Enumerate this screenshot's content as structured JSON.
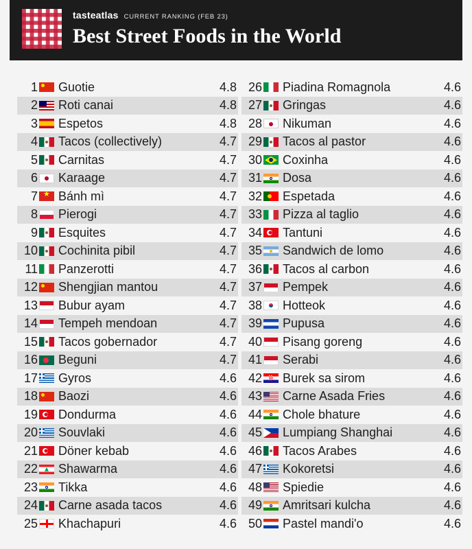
{
  "header": {
    "brand": "tasteatlas",
    "ranking_label": "CURRENT RANKING (FEB 23)",
    "title": "Best Street Foods in the World"
  },
  "colors": {
    "header_bg": "#1c1c1c",
    "row_shade": "#dcdcdc",
    "logo_red": "#c41e3a"
  },
  "left_column": [
    {
      "rank": "1",
      "flag": "china-flag-icon",
      "flag_class": "f-cn",
      "name": "Guotie",
      "rating": "4.8"
    },
    {
      "rank": "2",
      "flag": "malaysia-flag-icon",
      "flag_class": "f-my",
      "name": "Roti canai",
      "rating": "4.8"
    },
    {
      "rank": "3",
      "flag": "spain-flag-icon",
      "flag_class": "f-es",
      "name": "Espetos",
      "rating": "4.8"
    },
    {
      "rank": "4",
      "flag": "mexico-flag-icon",
      "flag_class": "f-mx",
      "name": "Tacos (collectively)",
      "rating": "4.7"
    },
    {
      "rank": "5",
      "flag": "mexico-flag-icon",
      "flag_class": "f-mx",
      "name": "Carnitas",
      "rating": "4.7"
    },
    {
      "rank": "6",
      "flag": "japan-flag-icon",
      "flag_class": "f-jp",
      "name": "Karaage",
      "rating": "4.7"
    },
    {
      "rank": "7",
      "flag": "vietnam-flag-icon",
      "flag_class": "f-vn",
      "name": "Bánh mì",
      "rating": "4.7"
    },
    {
      "rank": "8",
      "flag": "poland-flag-icon",
      "flag_class": "f-pl",
      "name": "Pierogi",
      "rating": "4.7"
    },
    {
      "rank": "9",
      "flag": "mexico-flag-icon",
      "flag_class": "f-mx",
      "name": "Esquites",
      "rating": "4.7"
    },
    {
      "rank": "10",
      "flag": "mexico-flag-icon",
      "flag_class": "f-mx",
      "name": "Cochinita pibil",
      "rating": "4.7"
    },
    {
      "rank": "11",
      "flag": "italy-flag-icon",
      "flag_class": "f-it",
      "name": "Panzerotti",
      "rating": "4.7"
    },
    {
      "rank": "12",
      "flag": "china-flag-icon",
      "flag_class": "f-cn",
      "name": "Shengjian mantou",
      "rating": "4.7"
    },
    {
      "rank": "13",
      "flag": "indonesia-flag-icon",
      "flag_class": "f-id",
      "name": "Bubur ayam",
      "rating": "4.7"
    },
    {
      "rank": "14",
      "flag": "indonesia-flag-icon",
      "flag_class": "f-id",
      "name": "Tempeh mendoan",
      "rating": "4.7"
    },
    {
      "rank": "15",
      "flag": "mexico-flag-icon",
      "flag_class": "f-mx",
      "name": "Tacos gobernador",
      "rating": "4.7"
    },
    {
      "rank": "16",
      "flag": "bangladesh-flag-icon",
      "flag_class": "f-bd",
      "name": "Beguni",
      "rating": "4.7"
    },
    {
      "rank": "17",
      "flag": "greece-flag-icon",
      "flag_class": "f-gr",
      "name": "Gyros",
      "rating": "4.6"
    },
    {
      "rank": "18",
      "flag": "china-flag-icon",
      "flag_class": "f-cn",
      "name": "Baozi",
      "rating": "4.6"
    },
    {
      "rank": "19",
      "flag": "turkey-flag-icon",
      "flag_class": "f-tr",
      "name": "Dondurma",
      "rating": "4.6"
    },
    {
      "rank": "20",
      "flag": "greece-flag-icon",
      "flag_class": "f-gr",
      "name": "Souvlaki",
      "rating": "4.6"
    },
    {
      "rank": "21",
      "flag": "turkey-flag-icon",
      "flag_class": "f-tr",
      "name": "Döner kebab",
      "rating": "4.6"
    },
    {
      "rank": "22",
      "flag": "lebanon-flag-icon",
      "flag_class": "f-lb",
      "name": "Shawarma",
      "rating": "4.6"
    },
    {
      "rank": "23",
      "flag": "india-flag-icon",
      "flag_class": "f-in",
      "name": "Tikka",
      "rating": "4.6"
    },
    {
      "rank": "24",
      "flag": "mexico-flag-icon",
      "flag_class": "f-mx",
      "name": "Carne asada tacos",
      "rating": "4.6"
    },
    {
      "rank": "25",
      "flag": "georgia-flag-icon",
      "flag_class": "f-ge",
      "name": "Khachapuri",
      "rating": "4.6"
    }
  ],
  "right_column": [
    {
      "rank": "26",
      "flag": "italy-flag-icon",
      "flag_class": "f-it",
      "name": "Piadina Romagnola",
      "rating": "4.6"
    },
    {
      "rank": "27",
      "flag": "mexico-flag-icon",
      "flag_class": "f-mx",
      "name": "Gringas",
      "rating": "4.6"
    },
    {
      "rank": "28",
      "flag": "japan-flag-icon",
      "flag_class": "f-jp",
      "name": "Nikuman",
      "rating": "4.6"
    },
    {
      "rank": "29",
      "flag": "mexico-flag-icon",
      "flag_class": "f-mx",
      "name": "Tacos al pastor",
      "rating": "4.6"
    },
    {
      "rank": "30",
      "flag": "brazil-flag-icon",
      "flag_class": "f-br",
      "name": "Coxinha",
      "rating": "4.6"
    },
    {
      "rank": "31",
      "flag": "india-flag-icon",
      "flag_class": "f-in",
      "name": "Dosa",
      "rating": "4.6"
    },
    {
      "rank": "32",
      "flag": "portugal-flag-icon",
      "flag_class": "f-pt",
      "name": "Espetada",
      "rating": "4.6"
    },
    {
      "rank": "33",
      "flag": "italy-flag-icon",
      "flag_class": "f-it",
      "name": "Pizza al taglio",
      "rating": "4.6"
    },
    {
      "rank": "34",
      "flag": "turkey-flag-icon",
      "flag_class": "f-tr",
      "name": "Tantuni",
      "rating": "4.6"
    },
    {
      "rank": "35",
      "flag": "argentina-flag-icon",
      "flag_class": "f-ar",
      "name": "Sandwich de lomo",
      "rating": "4.6"
    },
    {
      "rank": "36",
      "flag": "mexico-flag-icon",
      "flag_class": "f-mx",
      "name": "Tacos al carbon",
      "rating": "4.6"
    },
    {
      "rank": "37",
      "flag": "indonesia-flag-icon",
      "flag_class": "f-id",
      "name": "Pempek",
      "rating": "4.6"
    },
    {
      "rank": "38",
      "flag": "south-korea-flag-icon",
      "flag_class": "f-kr",
      "name": "Hotteok",
      "rating": "4.6"
    },
    {
      "rank": "39",
      "flag": "el-salvador-flag-icon",
      "flag_class": "f-sv",
      "name": "Pupusa",
      "rating": "4.6"
    },
    {
      "rank": "40",
      "flag": "indonesia-flag-icon",
      "flag_class": "f-id",
      "name": "Pisang goreng",
      "rating": "4.6"
    },
    {
      "rank": "41",
      "flag": "indonesia-flag-icon",
      "flag_class": "f-id",
      "name": "Serabi",
      "rating": "4.6"
    },
    {
      "rank": "42",
      "flag": "croatia-flag-icon",
      "flag_class": "f-hr",
      "name": "Burek sa sirom",
      "rating": "4.6"
    },
    {
      "rank": "43",
      "flag": "usa-flag-icon",
      "flag_class": "f-us",
      "name": "Carne Asada Fries",
      "rating": "4.6"
    },
    {
      "rank": "44",
      "flag": "india-flag-icon",
      "flag_class": "f-in",
      "name": "Chole bhature",
      "rating": "4.6"
    },
    {
      "rank": "45",
      "flag": "philippines-flag-icon",
      "flag_class": "f-ph",
      "name": "Lumpiang Shanghai",
      "rating": "4.6"
    },
    {
      "rank": "46",
      "flag": "mexico-flag-icon",
      "flag_class": "f-mx",
      "name": "Tacos Arabes",
      "rating": "4.6"
    },
    {
      "rank": "47",
      "flag": "greece-flag-icon",
      "flag_class": "f-gr",
      "name": "Kokoretsi",
      "rating": "4.6"
    },
    {
      "rank": "48",
      "flag": "usa-flag-icon",
      "flag_class": "f-us",
      "name": "Spiedie",
      "rating": "4.6"
    },
    {
      "rank": "49",
      "flag": "india-flag-icon",
      "flag_class": "f-in",
      "name": "Amritsari kulcha",
      "rating": "4.6"
    },
    {
      "rank": "50",
      "flag": "paraguay-flag-icon",
      "flag_class": "f-py",
      "name": "Pastel mandi'o",
      "rating": "4.6"
    }
  ]
}
